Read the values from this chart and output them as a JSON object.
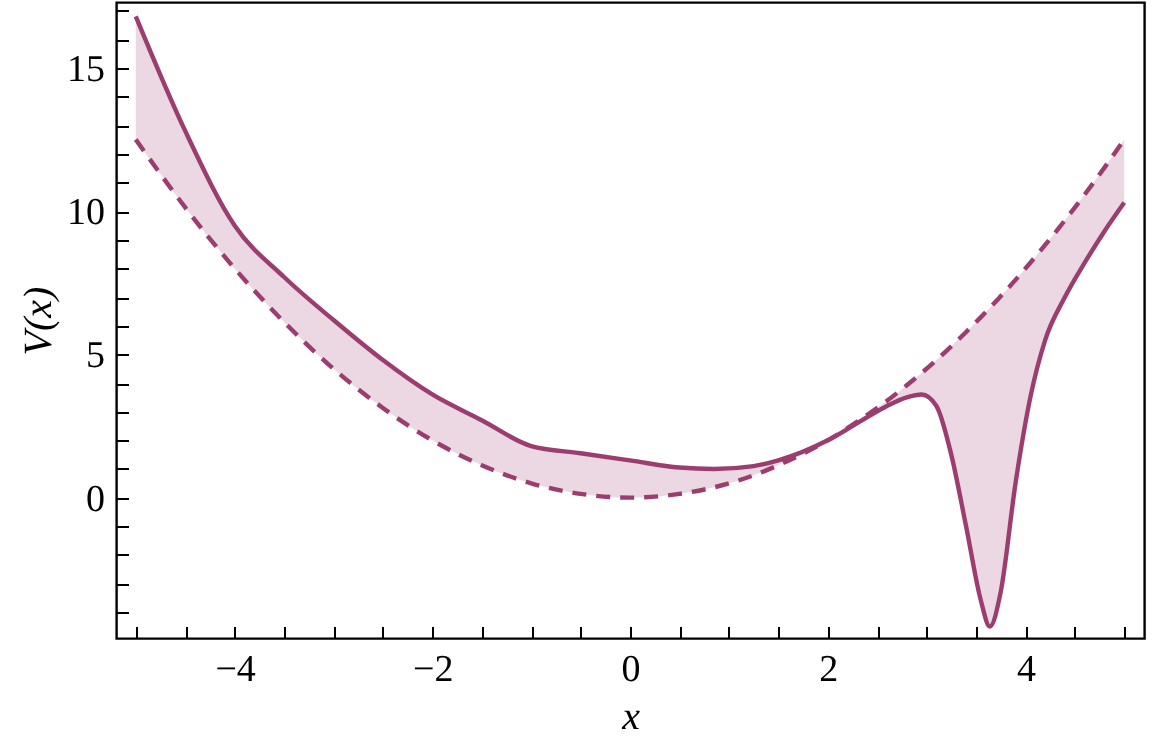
{
  "chart_data": {
    "type": "line",
    "xlabel": "x",
    "ylabel": "V(x)",
    "x": [
      -5,
      -4.5,
      -4,
      -3.5,
      -3,
      -2.5,
      -2,
      -1.5,
      -1,
      -0.5,
      0,
      0.5,
      0.85,
      1.25,
      1.5,
      2,
      2.3,
      2.6,
      2.8,
      2.95,
      3.1,
      3.25,
      3.4,
      3.55,
      3.64,
      3.75,
      3.9,
      4.05,
      4.2,
      4.4,
      4.6,
      4.8,
      5
    ],
    "series": [
      {
        "color": "#9b3d6e",
        "line_style": "solid",
        "values": [
          16.8,
          12.8,
          9.5,
          7.7,
          6.2,
          4.8,
          3.6,
          2.7,
          1.8,
          1.55,
          1.3,
          1.05,
          1.0,
          1.1,
          1.3,
          2.0,
          2.6,
          3.2,
          3.5,
          3.6,
          3.2,
          1.5,
          -1.0,
          -3.6,
          -4.5,
          -3.3,
          0.5,
          3.5,
          5.5,
          7.0,
          8.2,
          9.3,
          10.3
        ],
        "lower": [
          12.5,
          10.13,
          8,
          6.13,
          4.5,
          3.13,
          2,
          1.13,
          0.5,
          0.13,
          0,
          0.13,
          0.36,
          0.78,
          1.13,
          2.0,
          2.6,
          3.2,
          3.5,
          3.6,
          3.2,
          1.5,
          -1.0,
          -3.6,
          -4.5,
          -3.3,
          0.5,
          3.5,
          5.5,
          7.0,
          8.2,
          9.3,
          10.3
        ],
        "upper": [
          16.8,
          12.8,
          9.5,
          7.7,
          6.2,
          4.8,
          3.6,
          2.7,
          1.8,
          1.55,
          1.3,
          1.05,
          1.0,
          1.1,
          1.3,
          2.0,
          2.65,
          3.38,
          3.92,
          4.35,
          4.8,
          5.28,
          5.78,
          6.3,
          6.62,
          7.03,
          7.6,
          8.2,
          8.82,
          9.68,
          10.58,
          11.52,
          12.5
        ]
      },
      {
        "color": "#9b3d6e",
        "line_style": "dashed",
        "values": [
          12.5,
          10.13,
          8,
          6.13,
          4.5,
          3.13,
          2,
          1.13,
          0.5,
          0.13,
          0,
          0.13,
          0.36,
          0.78,
          1.13,
          2.0,
          2.65,
          3.38,
          3.92,
          4.35,
          4.8,
          5.28,
          5.78,
          6.3,
          6.62,
          7.03,
          7.6,
          8.2,
          8.82,
          9.68,
          10.58,
          11.52,
          12.5
        ]
      }
    ],
    "xlim": [
      -5.2,
      5.2
    ],
    "ylim": [
      -4.9,
      17.3
    ],
    "xticks": [
      {
        "value": -5,
        "label": null
      },
      {
        "value": -4.5,
        "label": null
      },
      {
        "value": -4,
        "label": "−4"
      },
      {
        "value": -3.5,
        "label": null
      },
      {
        "value": -3,
        "label": null
      },
      {
        "value": -2.5,
        "label": null
      },
      {
        "value": -2,
        "label": "−2"
      },
      {
        "value": -1.5,
        "label": null
      },
      {
        "value": -1,
        "label": null
      },
      {
        "value": -0.5,
        "label": null
      },
      0,
      {
        "value": 0.5,
        "label": null
      },
      {
        "value": 1,
        "label": null
      },
      {
        "value": 1.5,
        "label": null
      },
      2,
      {
        "value": 2.5,
        "label": null
      },
      {
        "value": 3,
        "label": null
      },
      {
        "value": 3.5,
        "label": null
      },
      4,
      {
        "value": 4.5,
        "label": null
      },
      {
        "value": 5,
        "label": null
      }
    ],
    "yticks": [
      {
        "value": -4,
        "label": null
      },
      {
        "value": -3,
        "label": null
      },
      {
        "value": -2,
        "label": null
      },
      {
        "value": -1,
        "label": null
      },
      0,
      {
        "value": 1,
        "label": null
      },
      {
        "value": 2,
        "label": null
      },
      {
        "value": 3,
        "label": null
      },
      {
        "value": 4,
        "label": null
      },
      5,
      {
        "value": 6,
        "label": null
      },
      {
        "value": 7,
        "label": null
      },
      {
        "value": 8,
        "label": null
      },
      {
        "value": 9,
        "label": null
      },
      10,
      {
        "value": 11,
        "label": null
      },
      {
        "value": 12,
        "label": null
      },
      {
        "value": 13,
        "label": null
      },
      {
        "value": 14,
        "label": null
      },
      15,
      {
        "value": 16,
        "label": null
      },
      {
        "value": 17,
        "label": null
      }
    ],
    "grid": false
  }
}
